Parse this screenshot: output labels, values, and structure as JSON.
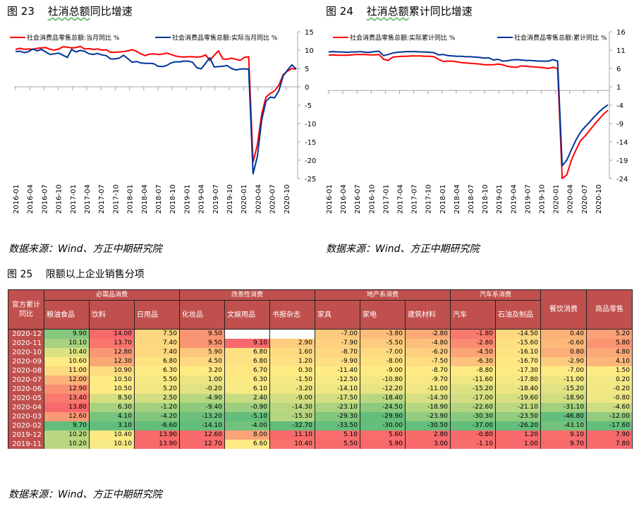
{
  "figures": {
    "fig23": {
      "label": "图",
      "number": "23",
      "title_ul": "社消总额",
      "title_rest": "同比增速"
    },
    "fig24": {
      "label": "图",
      "number": "24",
      "title_ul": "社消总额",
      "title_rest": "累计同比增速"
    },
    "fig25": {
      "label": "图",
      "number": "25",
      "title": "限额以上企业销售分项"
    }
  },
  "sources": {
    "s1": "数据来源：Wind、方正中期研究院",
    "s2": "数据来源：Wind、方正中期研究院",
    "s3": "数据来源：Wind、方正中期研究院"
  },
  "chart_data": [
    {
      "type": "line",
      "title": "社消总额同比增速",
      "x_ticks": [
        "2016-01",
        "2016-04",
        "2016-07",
        "2016-10",
        "2017-01",
        "2017-04",
        "2017-07",
        "2017-10",
        "2018-01",
        "2018-04",
        "2018-07",
        "2018-10",
        "2019-01",
        "2019-04",
        "2019-07",
        "2019-10",
        "2020-01",
        "2020-04",
        "2020-07",
        "2020-10"
      ],
      "y_axis": {
        "position": "right",
        "ticks": [
          15,
          10,
          5,
          0,
          -5,
          -10,
          -15,
          -20,
          -25
        ],
        "ylim": [
          -25,
          15
        ]
      },
      "legend": [
        "社会消费品零售总额:当月同比  %",
        "社会消费品零售总额:实际当月同比  %"
      ],
      "series": [
        {
          "name": "社会消费品零售总额:当月同比  %",
          "color": "#ff0000",
          "values": [
            10.2,
            10.5,
            10.2,
            10.3,
            10.2,
            10.5,
            10.6,
            10.7,
            10.2,
            10.0,
            10.3,
            10.9,
            10.8,
            10.6,
            10.7,
            11.0,
            10.3,
            10.4,
            10.2,
            10.3,
            10.0,
            10.1,
            9.4,
            9.4,
            9.5,
            9.6,
            9.8,
            10.1,
            9.7,
            9.0,
            8.5,
            8.9,
            9.0,
            8.8,
            8.9,
            9.2,
            8.8,
            8.4,
            8.2,
            8.1,
            8.2,
            8.2,
            8.1,
            8.2,
            8.7,
            7.2,
            8.6,
            9.8,
            7.6,
            7.5,
            7.8,
            7.5,
            7.2,
            8.0,
            8.2,
            -20.5,
            -15.8,
            -7.5,
            -2.8,
            -1.8,
            -1.1,
            0.5,
            3.3,
            4.3,
            5.0,
            4.8
          ]
        },
        {
          "name": "社会消费品零售总额:实际当月同比  %",
          "color": "#003399",
          "values": [
            9.6,
            9.7,
            9.3,
            9.6,
            10.3,
            9.8,
            10.2,
            9.5,
            8.8,
            9.0,
            9.2,
            8.6,
            8.0,
            10.2,
            9.5,
            9.9,
            9.7,
            9.0,
            8.8,
            9.1,
            8.7,
            8.5,
            7.6,
            7.6,
            7.8,
            8.6,
            7.7,
            6.7,
            6.9,
            6.5,
            6.4,
            6.4,
            6.3,
            5.6,
            5.5,
            5.8,
            6.5,
            6.8,
            6.8,
            7.0,
            7.0,
            6.7,
            5.2,
            4.9,
            6.4,
            7.9,
            5.4,
            5.5,
            5.6,
            5.8,
            5.0,
            4.6,
            4.8,
            4.9,
            4.8,
            -23.7,
            -19.0,
            -9.1,
            -3.9,
            -2.8,
            -3.0,
            -1.0,
            3.0,
            4.6,
            6.0,
            4.8
          ]
        }
      ]
    },
    {
      "type": "line",
      "title": "社消总额累计同比增速",
      "x_ticks": [
        "2016-01",
        "2016-04",
        "2016-07",
        "2016-10",
        "2017-01",
        "2017-04",
        "2017-07",
        "2017-10",
        "2018-01",
        "2018-04",
        "2018-07",
        "2018-10",
        "2019-01",
        "2019-04",
        "2019-07",
        "2019-10",
        "2020-01",
        "2020-04",
        "2020-07",
        "2020-10"
      ],
      "y_axis": {
        "position": "right",
        "ticks": [
          16,
          11,
          6,
          1,
          -4,
          -9,
          -14,
          -19,
          -24
        ],
        "ylim": [
          -24,
          16
        ]
      },
      "legend": [
        "社会消费品零售总额:实际累计同比  %",
        "社会消费品零售总额:累计同比  %"
      ],
      "series": [
        {
          "name": "社会消费品零售总额:实际累计同比  %",
          "color": "#ff0000",
          "values": [
            9.6,
            9.7,
            9.6,
            9.6,
            9.6,
            9.7,
            9.8,
            9.8,
            9.8,
            9.7,
            9.7,
            9.8,
            8.5,
            8.2,
            9.1,
            9.2,
            9.3,
            9.3,
            9.4,
            9.4,
            9.4,
            9.3,
            9.3,
            9.2,
            8.5,
            7.9,
            8.0,
            8.0,
            7.8,
            7.6,
            7.5,
            7.4,
            7.3,
            7.2,
            7.0,
            7.0,
            7.0,
            7.2,
            7.0,
            6.6,
            6.4,
            6.3,
            6.7,
            6.6,
            6.5,
            6.4,
            6.3,
            6.2,
            6.0,
            6.3,
            6.0,
            -24.0,
            -23.0,
            -19.0,
            -16.2,
            -13.7,
            -12.4,
            -10.9,
            -9.3,
            -7.9,
            -6.5,
            -5.4
          ]
        },
        {
          "name": "社会消费品零售总额:累计同比  %",
          "color": "#003399",
          "values": [
            10.5,
            10.6,
            10.5,
            10.5,
            10.4,
            10.5,
            10.5,
            10.6,
            10.4,
            10.4,
            10.6,
            10.7,
            9.5,
            9.8,
            10.2,
            10.4,
            10.5,
            10.6,
            10.6,
            10.6,
            10.5,
            10.5,
            10.4,
            10.3,
            9.7,
            9.8,
            9.5,
            9.4,
            9.3,
            9.3,
            9.2,
            9.2,
            9.1,
            9.0,
            8.8,
            8.9,
            8.3,
            8.5,
            8.0,
            8.1,
            8.3,
            8.4,
            8.3,
            8.2,
            8.2,
            8.1,
            8.0,
            8.0,
            8.0,
            8.4,
            8.0,
            -20.5,
            -19.0,
            -16.2,
            -13.5,
            -11.4,
            -9.9,
            -8.6,
            -7.2,
            -5.9,
            -4.8,
            -3.9
          ]
        }
      ]
    },
    {
      "type": "table",
      "title": "限额以上企业销售分项",
      "row_header": "官方累计同比",
      "groups": [
        {
          "name": "必需品消费",
          "columns": [
            "粮油食品",
            "饮料",
            "日用品"
          ]
        },
        {
          "name": "改善性消费",
          "columns": [
            "化妆品",
            "文娱用品",
            "书报杂志"
          ]
        },
        {
          "name": "地产系消费",
          "columns": [
            "家具",
            "家电",
            "建筑材料"
          ]
        },
        {
          "name": "汽车系消费",
          "columns": [
            "汽车",
            "石油及制品"
          ]
        },
        {
          "name": "餐饮消费",
          "columns": []
        },
        {
          "name": "商品零售",
          "columns": []
        }
      ],
      "rows": [
        {
          "date": "2020-12",
          "values": [
            "9.90",
            "14.00",
            "7.50",
            "9.50",
            "",
            "",
            "-7.00",
            "-3.80",
            "-2.80",
            "-1.80",
            "-14.50",
            "0.40",
            "5.20"
          ]
        },
        {
          "date": "2020-11",
          "values": [
            "10.10",
            "13.70",
            "7.40",
            "9.50",
            "9.10",
            "2.90",
            "-7.90",
            "-5.50",
            "-4.80",
            "-2.80",
            "-15.60",
            "-0.60",
            "5.80"
          ]
        },
        {
          "date": "2020-10",
          "values": [
            "10.40",
            "12.80",
            "7.40",
            "5.90",
            "6.80",
            "1.60",
            "-8.70",
            "-7.00",
            "-6.20",
            "-4.50",
            "-16.10",
            "0.80",
            "4.80"
          ]
        },
        {
          "date": "2020-09",
          "values": [
            "10.60",
            "12.30",
            "6.80",
            "4.50",
            "6.80",
            "1.20",
            "-9.90",
            "-8.00",
            "-7.50",
            "-6.30",
            "-16.70",
            "-2.90",
            "4.10"
          ]
        },
        {
          "date": "2020-08",
          "values": [
            "11.00",
            "10.90",
            "6.30",
            "3.20",
            "6.70",
            "0.30",
            "-11.40",
            "-9.00",
            "-8.70",
            "-8.80",
            "-17.30",
            "-7.00",
            "1.50"
          ]
        },
        {
          "date": "2020-07",
          "values": [
            "12.00",
            "10.50",
            "5.50",
            "1.00",
            "6.30",
            "-1.50",
            "-12.50",
            "-10.80",
            "-9.70",
            "-11.60",
            "-17.80",
            "-11.00",
            "0.20"
          ]
        },
        {
          "date": "2020-06",
          "values": [
            "12.90",
            "10.50",
            "5.20",
            "-0.20",
            "6.10",
            "-3.20",
            "-14.10",
            "-12.20",
            "-11.00",
            "-15.20",
            "-18.40",
            "-15.20",
            "-0.20"
          ]
        },
        {
          "date": "2020-05",
          "values": [
            "13.40",
            "8.50",
            "2.50",
            "-4.90",
            "2.40",
            "-9.00",
            "-17.50",
            "-18.40",
            "-14.30",
            "-17.00",
            "-19.60",
            "-18.90",
            "-0.80"
          ]
        },
        {
          "date": "2020-04",
          "values": [
            "13.80",
            "6.30",
            "-1.20",
            "-9.40",
            "-0.90",
            "-14.30",
            "-23.10",
            "-24.50",
            "-18.90",
            "-22.60",
            "-21.10",
            "-31.10",
            "-4.60"
          ]
        },
        {
          "date": "2020-03",
          "values": [
            "12.60",
            "4.10",
            "-4.20",
            "-13.20",
            "-5.10",
            "-15.30",
            "-29.30",
            "-29.90",
            "-23.90",
            "-30.30",
            "-23.50",
            "-46.80",
            "-12.00"
          ]
        },
        {
          "date": "2020-02",
          "values": [
            "9.70",
            "3.10",
            "-6.60",
            "-14.10",
            "-4.00",
            "-32.70",
            "-33.50",
            "-30.00",
            "-30.50",
            "-37.00",
            "-26.20",
            "-43.10",
            "-17.60"
          ]
        },
        {
          "date": "2019-12",
          "values": [
            "10.20",
            "10.40",
            "13.90",
            "12.60",
            "8.00",
            "11.10",
            "5.10",
            "5.60",
            "2.80",
            "-0.80",
            "1.20",
            "9.10",
            "7.90"
          ]
        },
        {
          "date": "2019-11",
          "values": [
            "10.20",
            "10.10",
            "13.90",
            "12.70",
            "6.60",
            "10.40",
            "5.50",
            "5.90",
            "3.00",
            "-1.10",
            "1.00",
            "9.70",
            "7.80"
          ]
        }
      ],
      "colors": {
        "header": "#c0504d",
        "high": "#f8696b",
        "mid": "#ffeb84",
        "low": "#63be7b"
      }
    }
  ]
}
